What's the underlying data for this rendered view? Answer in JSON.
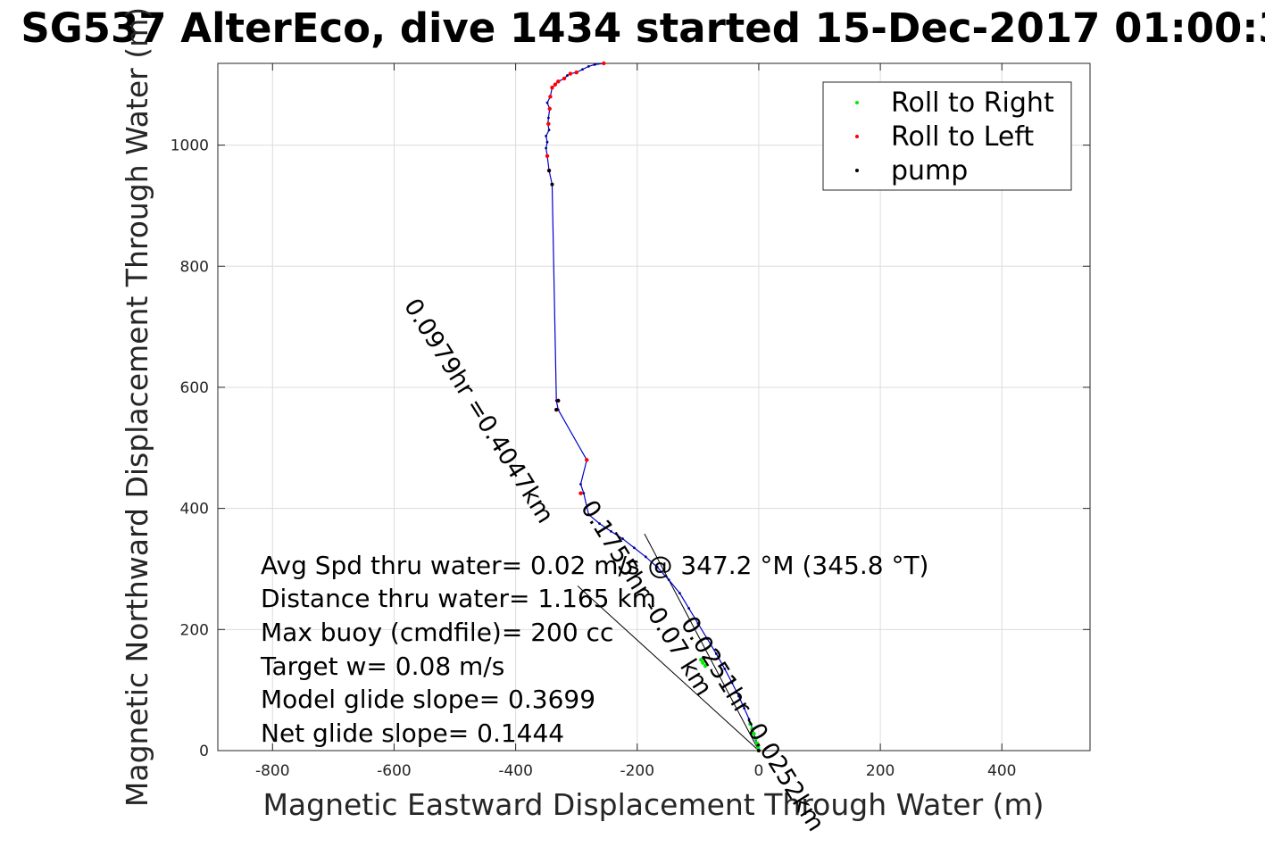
{
  "chart_data": {
    "type": "line",
    "title": "SG537 AlterEco, dive 1434 started 15-Dec-2017 01:00:3",
    "xlabel": "Magnetic Eastward Displacement Through Water (m)",
    "ylabel": "Magnetic Northward Displacement Through Water (m)",
    "xlim": [
      -890,
      545
    ],
    "ylim": [
      0,
      1135
    ],
    "grid": true,
    "legend_position": "top-right",
    "x_ticks": [
      -800,
      -600,
      -400,
      -200,
      0,
      200,
      400
    ],
    "x_tick_labels": [
      "-800",
      "-600",
      "-400",
      "-200",
      "0",
      "200",
      "400"
    ],
    "y_ticks": [
      0,
      200,
      400,
      600,
      800,
      1000
    ],
    "y_tick_labels": [
      "0",
      "200",
      "400",
      "600",
      "800",
      "1000"
    ],
    "legend": [
      {
        "label": "Roll to Right",
        "color": "#00ee00"
      },
      {
        "label": "Roll to Left",
        "color": "#ff0000"
      },
      {
        "label": "pump",
        "color": "#000000"
      }
    ],
    "track_color": "#0000cc",
    "series": [
      {
        "kind": "track",
        "x": [
          0,
          -5,
          -10,
          -16,
          -24,
          -33,
          -44,
          -56,
          -70,
          -85,
          -100,
          -115,
          -130,
          -148,
          -167,
          -186,
          -205,
          -224,
          -243,
          -262,
          -280,
          -288,
          -293,
          -283,
          -330,
          -333,
          -340,
          -345,
          -348,
          -350,
          -348,
          -350,
          -345,
          -347,
          -346,
          -344,
          -348,
          -343,
          -340,
          -335,
          -330,
          -320,
          -315,
          -310,
          -300,
          -290,
          -280,
          -270,
          -255
        ],
        "y": [
          0,
          18,
          35,
          52,
          70,
          90,
          112,
          135,
          160,
          185,
          210,
          235,
          260,
          282,
          303,
          320,
          335,
          350,
          362,
          375,
          390,
          425,
          440,
          480,
          563,
          578,
          935,
          958,
          982,
          995,
          1005,
          1015,
          1025,
          1035,
          1045,
          1060,
          1070,
          1080,
          1095,
          1100,
          1105,
          1110,
          1115,
          1118,
          1120,
          1125,
          1130,
          1133,
          1135
        ]
      },
      {
        "kind": "roll-right",
        "x": [
          -1,
          -3,
          -5,
          -8,
          -11,
          -14,
          -95,
          -92,
          -88
        ],
        "y": [
          5,
          12,
          20,
          28,
          36,
          44,
          150,
          145,
          140
        ]
      },
      {
        "kind": "roll-left",
        "x": [
          -283,
          -293,
          -330,
          -333,
          -345,
          -348,
          -346,
          -344,
          -343,
          -340,
          -335,
          -330,
          -320,
          -310,
          -300,
          -255
        ],
        "y": [
          480,
          425,
          578,
          563,
          958,
          982,
          1035,
          1060,
          1080,
          1095,
          1100,
          1105,
          1110,
          1118,
          1120,
          1135
        ]
      },
      {
        "kind": "pump",
        "x": [
          0,
          -340,
          -345,
          -330,
          -333
        ],
        "y": [
          0,
          935,
          958,
          578,
          563
        ]
      },
      {
        "kind": "reference-line",
        "x": [
          0,
          -188
        ],
        "y": [
          0,
          358
        ]
      },
      {
        "kind": "reference-line",
        "x": [
          0,
          -298
        ],
        "y": [
          0,
          272
        ]
      }
    ],
    "annotations": [
      "Avg Spd thru water=  0.02 m/s @ 347.2 °M (345.8 °T)",
      "Distance thru water=  1.165 km",
      "Max buoy (cmdfile)= 200 cc",
      "Target w= 0.08 m/s",
      "Model glide slope= 0.3699",
      "Net glide slope= 0.1444"
    ],
    "rotated_labels": [
      "0.0979hr =0.4047km",
      "0.1755hr  -0.07 km",
      "0.0251hr  -0.0252km"
    ]
  }
}
